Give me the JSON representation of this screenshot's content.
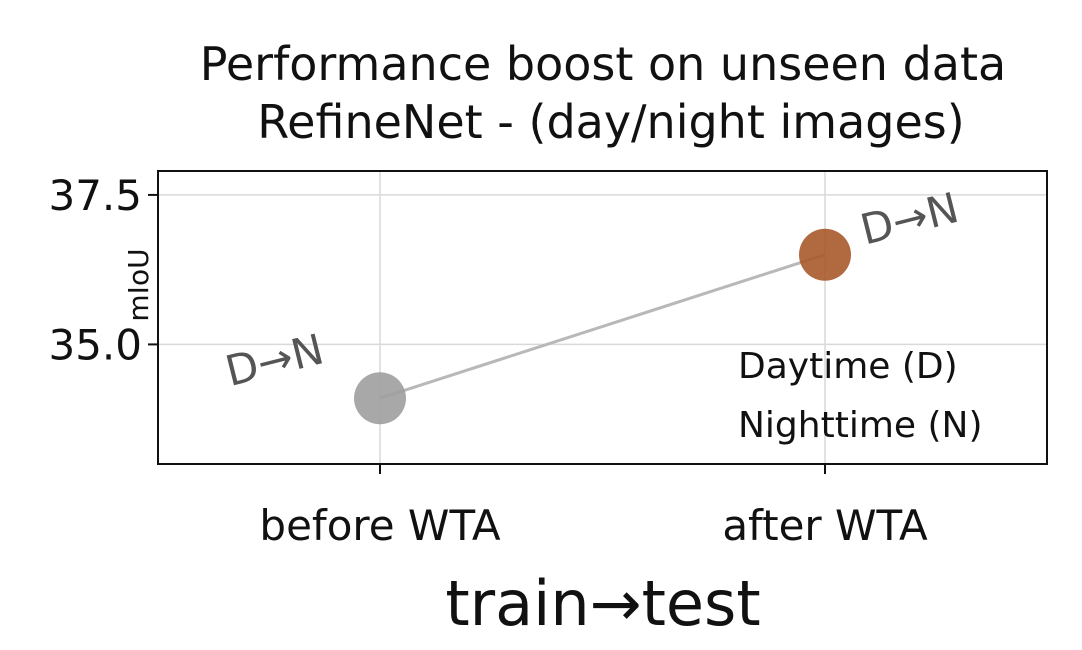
{
  "chart_data": {
    "type": "scatter",
    "title_lines": [
      "Performance boost on unseen data",
      "RefineNet - (day/night images)"
    ],
    "xlabel": "train→test",
    "ylabel": "mIoU",
    "categories": [
      "before WTA",
      "after WTA"
    ],
    "ylim": [
      33.0,
      37.9
    ],
    "yticks": [
      35.0,
      37.5
    ],
    "ytick_labels": [
      "35.0",
      "37.5"
    ],
    "grid": true,
    "points": [
      {
        "category": "before WTA",
        "y": 34.1,
        "label": "D→N",
        "color": "#9e9e9e"
      },
      {
        "category": "after WTA",
        "y": 36.5,
        "label": "D→N",
        "color": "#a8592a"
      }
    ],
    "connector_color": "#b8b8b8",
    "legend": {
      "placement": "bottom-right",
      "entries": [
        "Daytime (D)",
        "Nighttime (N)"
      ]
    }
  }
}
